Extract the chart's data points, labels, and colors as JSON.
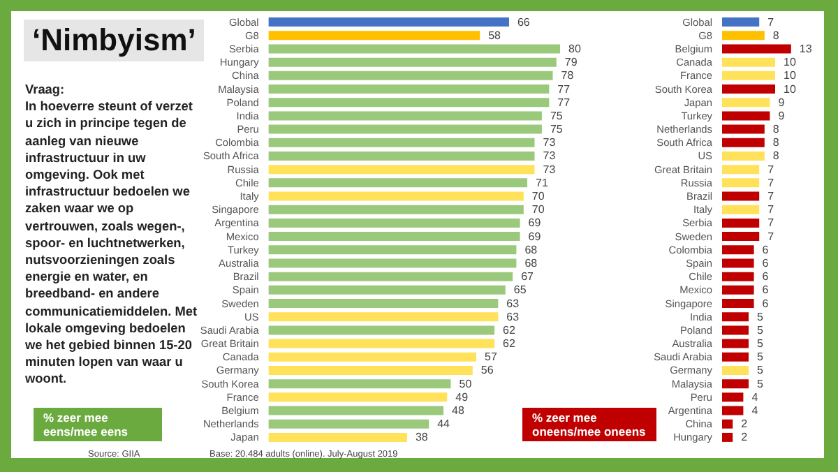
{
  "chart_data": [
    {
      "type": "other",
      "title": "‘Nimbyism’",
      "annotations": [
        "Vraag:",
        "In hoeverre steunt of verzet u zich in principe tegen de aanleg van nieuwe infrastructuur in uw omgeving. Ook met infrastructuur bedoelen we zaken waar we op vertrouwen, zoals wegen-, spoor- en luchtnetwerken, nutsvoorzieningen zoals energie en water, en breedband- en andere communicatiemiddelen. Met lokale omgeving bedoelen we het gebied binnen 15-20 minuten lopen van waar u woont.",
        "% zeer mee eens/mee eens",
        "Source: GIIA"
      ]
    },
    {
      "type": "bar",
      "orientation": "horizontal",
      "annotations": [
        "Base: 20.484 adults (online). July-August 2019"
      ],
      "categories": [
        "Global",
        "G8",
        "Serbia",
        "Hungary",
        "China",
        "Malaysia",
        "Poland",
        "India",
        "Peru",
        "Colombia",
        "South Africa",
        "Russia",
        "Chile",
        "Italy",
        "Singapore",
        "Argentina",
        "Mexico",
        "Turkey",
        "Australia",
        "Brazil",
        "Spain",
        "Sweden",
        "US",
        "Saudi Arabia",
        "Great Britain",
        "Canada",
        "Germany",
        "South Korea",
        "France",
        "Belgium",
        "Netherlands",
        "Japan"
      ],
      "values": [
        66,
        58,
        80,
        79,
        78,
        77,
        77,
        75,
        75,
        73,
        73,
        73,
        71,
        70,
        70,
        69,
        69,
        68,
        68,
        67,
        65,
        63,
        63,
        62,
        62,
        57,
        56,
        50,
        49,
        48,
        44,
        38
      ],
      "colors": [
        "#4472c4",
        "#ffc000",
        "#9bc97b",
        "#9bc97b",
        "#9bc97b",
        "#9bc97b",
        "#9bc97b",
        "#9bc97b",
        "#9bc97b",
        "#9bc97b",
        "#9bc97b",
        "#ffe15a",
        "#9bc97b",
        "#ffe15a",
        "#9bc97b",
        "#9bc97b",
        "#9bc97b",
        "#9bc97b",
        "#9bc97b",
        "#9bc97b",
        "#9bc97b",
        "#9bc97b",
        "#ffe15a",
        "#9bc97b",
        "#ffe15a",
        "#ffe15a",
        "#ffe15a",
        "#9bc97b",
        "#ffe15a",
        "#9bc97b",
        "#9bc97b",
        "#ffe15a"
      ],
      "tick_labels": "y",
      "data_labels": true
    },
    {
      "type": "bar",
      "orientation": "horizontal",
      "title": "% zeer mee oneens/mee oneens",
      "annotations": [
        "9"
      ],
      "categories": [
        "Global",
        "G8",
        "Belgium",
        "Canada",
        "France",
        "South Korea",
        "Japan",
        "Turkey",
        "Netherlands",
        "South Africa",
        "US",
        "Great Britain",
        "Russia",
        "Brazil",
        "Italy",
        "Serbia",
        "Sweden",
        "Colombia",
        "Spain",
        "Chile",
        "Mexico",
        "Singapore",
        "India",
        "Poland",
        "Australia",
        "Saudi Arabia",
        "Germany",
        "Malaysia",
        "Peru",
        "Argentina",
        "China",
        "Hungary"
      ],
      "values": [
        7,
        8,
        13,
        10,
        10,
        10,
        9,
        9,
        8,
        8,
        8,
        7,
        7,
        7,
        7,
        7,
        7,
        6,
        6,
        6,
        6,
        6,
        5,
        5,
        5,
        5,
        5,
        5,
        4,
        4,
        2,
        2
      ],
      "colors": [
        "#4472c4",
        "#ffc000",
        "#c00000",
        "#ffe15a",
        "#ffe15a",
        "#c00000",
        "#ffe15a",
        "#c00000",
        "#c00000",
        "#c00000",
        "#ffe15a",
        "#ffe15a",
        "#ffe15a",
        "#c00000",
        "#ffe15a",
        "#c00000",
        "#c00000",
        "#c00000",
        "#c00000",
        "#c00000",
        "#c00000",
        "#c00000",
        "#c00000",
        "#c00000",
        "#c00000",
        "#c00000",
        "#ffe15a",
        "#c00000",
        "#c00000",
        "#c00000",
        "#c00000",
        "#c00000"
      ],
      "tick_labels": "y",
      "data_labels": true
    }
  ]
}
